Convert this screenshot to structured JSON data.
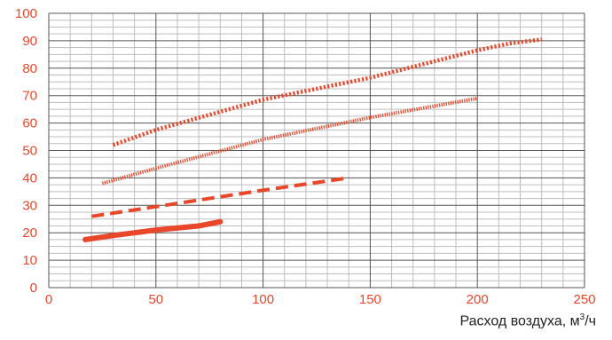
{
  "chart_data": {
    "type": "line",
    "xlabel": "Расход воздуха, м³/ч",
    "xlabel_parts": {
      "main": "Расход воздуха, м",
      "sup": "3",
      "suffix": "/ч"
    },
    "ylabel": "",
    "xlim": [
      0,
      250
    ],
    "ylim": [
      0,
      100
    ],
    "x_ticks": [
      0,
      50,
      100,
      150,
      200,
      250
    ],
    "y_ticks": [
      0,
      10,
      20,
      30,
      40,
      50,
      60,
      70,
      80,
      90,
      100
    ],
    "grid": "major and minor",
    "colors": {
      "series": "#e8472a",
      "tick_label": "#e8472a",
      "grid_major": "#555555",
      "grid_minor": "#bdbdbd"
    },
    "series": [
      {
        "style": "solid-thick",
        "x": [
          17,
          30,
          50,
          70,
          80
        ],
        "y": [
          17.5,
          19,
          21,
          22.5,
          24
        ]
      },
      {
        "style": "dashed",
        "x": [
          20,
          50,
          100,
          140
        ],
        "y": [
          26,
          29.5,
          35.5,
          40
        ]
      },
      {
        "style": "dotted-thin",
        "x": [
          25,
          50,
          100,
          150,
          200
        ],
        "y": [
          38,
          43.5,
          54,
          62,
          69
        ]
      },
      {
        "style": "dotted-thick",
        "x": [
          30,
          50,
          100,
          150,
          200,
          215,
          230
        ],
        "y": [
          52,
          57.5,
          68.5,
          76.5,
          86.5,
          89,
          90.5
        ]
      }
    ]
  }
}
